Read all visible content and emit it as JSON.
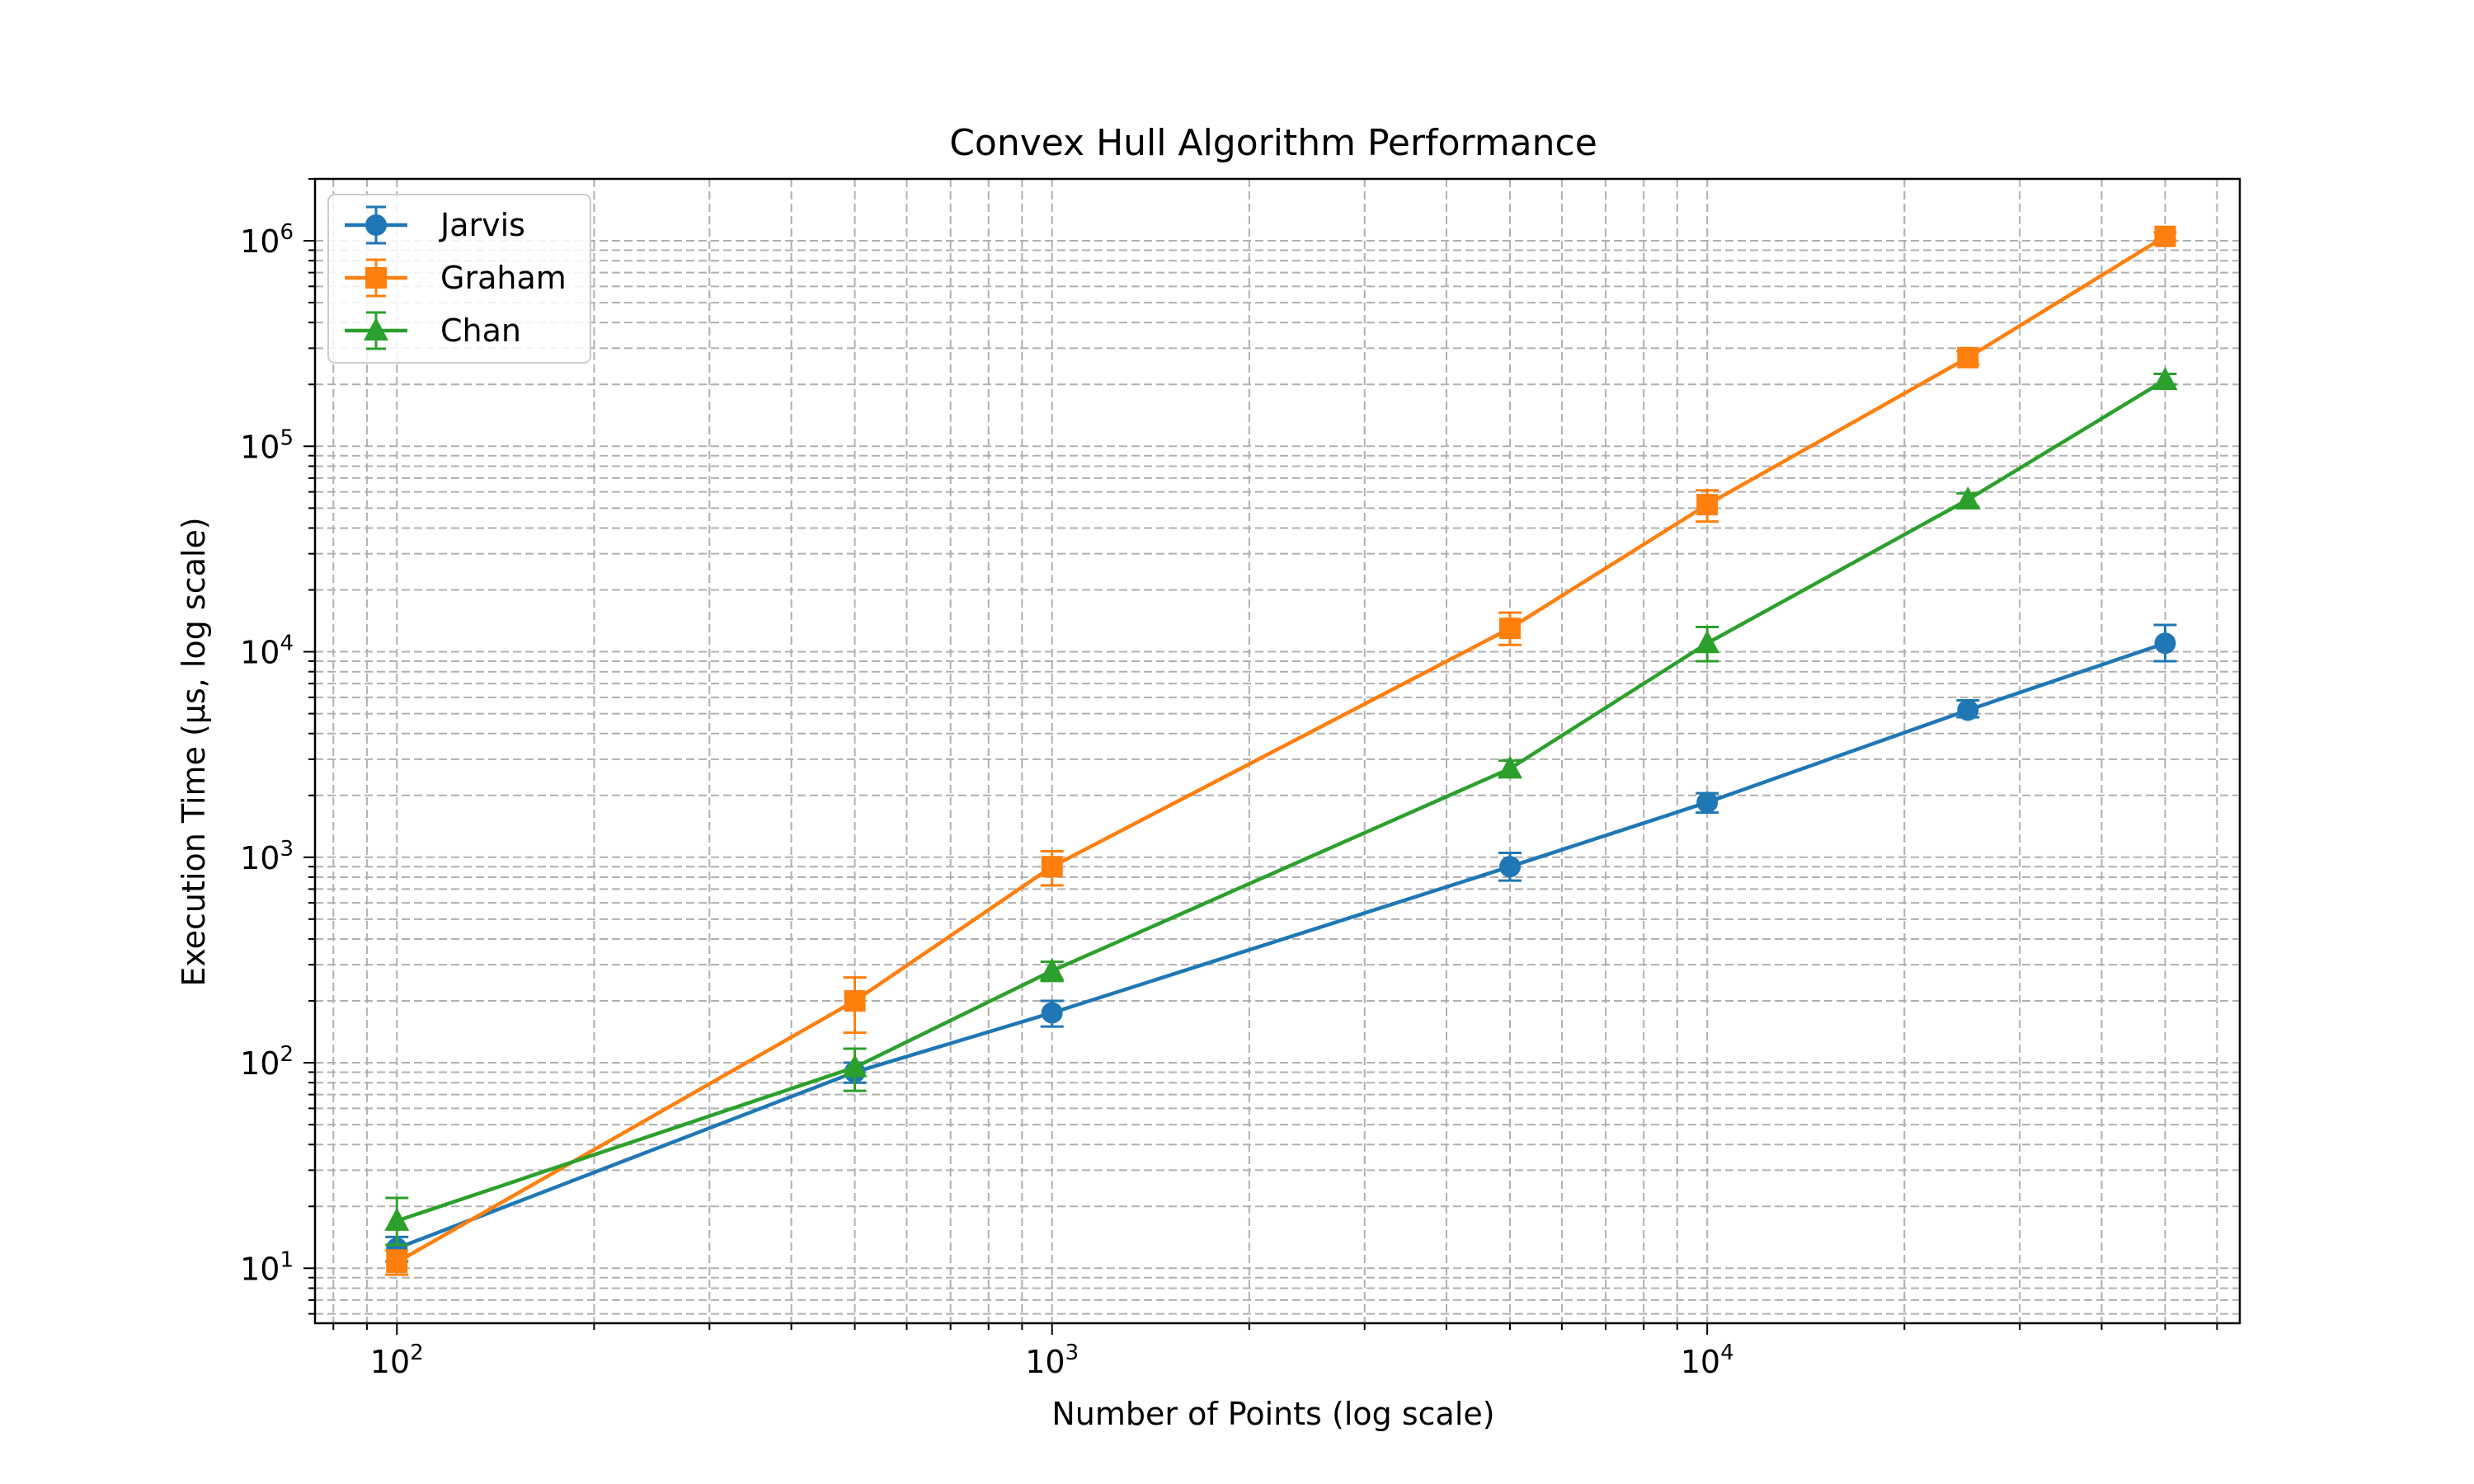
{
  "chart_data": {
    "type": "line",
    "title": "Convex Hull Algorithm Performance",
    "xlabel": "Number of Points (log scale)",
    "ylabel": "Execution Time (µs, log scale)",
    "xscale": "log",
    "yscale": "log",
    "xlim": [
      75,
      65000
    ],
    "ylim": [
      5.4,
      2000000
    ],
    "grid": true,
    "legend_position": "top-left",
    "x_ticks": [
      {
        "base": "10",
        "exp": "2",
        "value": 100
      },
      {
        "base": "10",
        "exp": "3",
        "value": 1000
      },
      {
        "base": "10",
        "exp": "4",
        "value": 10000
      }
    ],
    "y_ticks": [
      {
        "base": "10",
        "exp": "1",
        "value": 10
      },
      {
        "base": "10",
        "exp": "2",
        "value": 100
      },
      {
        "base": "10",
        "exp": "3",
        "value": 1000
      },
      {
        "base": "10",
        "exp": "4",
        "value": 10000
      },
      {
        "base": "10",
        "exp": "5",
        "value": 100000
      },
      {
        "base": "10",
        "exp": "6",
        "value": 1000000
      }
    ],
    "x": [
      100,
      500,
      1000,
      5000,
      10000,
      25000,
      50000
    ],
    "series": [
      {
        "name": "Jarvis",
        "color": "#1f77b4",
        "marker": "circle",
        "values": [
          12.5,
          90,
          175,
          900,
          1850,
          5200,
          11000
        ],
        "err_low": [
          10.8,
          80,
          150,
          770,
          1650,
          4800,
          9000
        ],
        "err_high": [
          14.2,
          100,
          200,
          1050,
          2050,
          5800,
          13500
        ]
      },
      {
        "name": "Graham",
        "color": "#ff7f0e",
        "marker": "square",
        "values": [
          10.7,
          200,
          900,
          13000,
          52000,
          270000,
          1050000
        ],
        "err_low": [
          9.3,
          140,
          730,
          10800,
          43000,
          250000,
          1000000
        ],
        "err_high": [
          12.2,
          260,
          1070,
          15500,
          61000,
          290000,
          1100000
        ]
      },
      {
        "name": "Chan",
        "color": "#2ca02c",
        "marker": "triangle",
        "values": [
          17,
          95,
          280,
          2700,
          11000,
          55000,
          210000
        ],
        "err_low": [
          13,
          73,
          250,
          2450,
          9000,
          51000,
          200000
        ],
        "err_high": [
          22,
          117,
          310,
          2950,
          13200,
          59000,
          225000
        ]
      }
    ]
  }
}
